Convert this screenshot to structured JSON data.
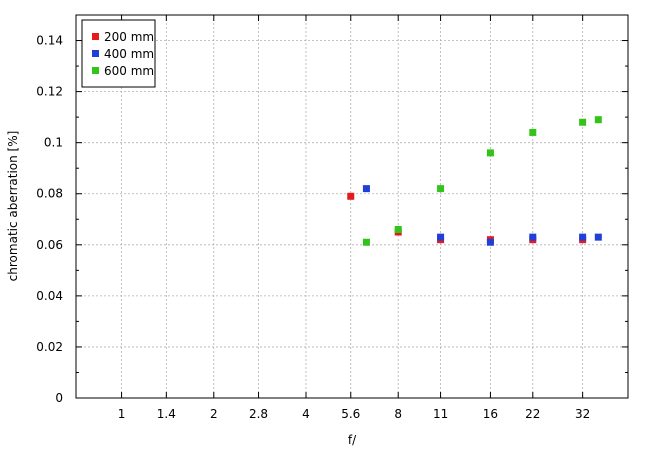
{
  "chart_data": {
    "type": "scatter",
    "title": "",
    "xlabel": "f/",
    "ylabel": "chromatic  aberration  [%]",
    "x_scale": "log2",
    "x_ticks": [
      {
        "value": 1,
        "label": "1"
      },
      {
        "value": 1.4,
        "label": "1.4"
      },
      {
        "value": 2,
        "label": "2"
      },
      {
        "value": 2.8,
        "label": "2.8"
      },
      {
        "value": 4,
        "label": "4"
      },
      {
        "value": 5.6,
        "label": "5.6"
      },
      {
        "value": 8,
        "label": "8"
      },
      {
        "value": 11,
        "label": "11"
      },
      {
        "value": 16,
        "label": "16"
      },
      {
        "value": 22,
        "label": "22"
      },
      {
        "value": 32,
        "label": "32"
      }
    ],
    "xlim": [
      0.71,
      45
    ],
    "ylim": [
      0,
      0.15
    ],
    "y_ticks": [
      {
        "value": 0,
        "label": "0"
      },
      {
        "value": 0.02,
        "label": "0.02"
      },
      {
        "value": 0.04,
        "label": "0.04"
      },
      {
        "value": 0.06,
        "label": "0.06"
      },
      {
        "value": 0.08,
        "label": "0.08"
      },
      {
        "value": 0.1,
        "label": "0.1"
      },
      {
        "value": 0.12,
        "label": "0.12"
      },
      {
        "value": 0.14,
        "label": "0.14"
      }
    ],
    "y_minor_step": 0.01,
    "grid": true,
    "legend_position": "top-left",
    "series": [
      {
        "name": "200 mm",
        "color": "#e41a1c",
        "points": [
          {
            "x": 5.6,
            "y": 0.079
          },
          {
            "x": 8,
            "y": 0.065
          },
          {
            "x": 11,
            "y": 0.062
          },
          {
            "x": 16,
            "y": 0.062
          },
          {
            "x": 22,
            "y": 0.062
          },
          {
            "x": 32,
            "y": 0.062
          }
        ]
      },
      {
        "name": "400 mm",
        "color": "#1f3fd6",
        "points": [
          {
            "x": 6.3,
            "y": 0.082
          },
          {
            "x": 11,
            "y": 0.063
          },
          {
            "x": 16,
            "y": 0.061
          },
          {
            "x": 22,
            "y": 0.063
          },
          {
            "x": 32,
            "y": 0.063
          },
          {
            "x": 36,
            "y": 0.063
          }
        ]
      },
      {
        "name": "600 mm",
        "color": "#33c41a",
        "points": [
          {
            "x": 6.3,
            "y": 0.061
          },
          {
            "x": 8,
            "y": 0.066
          },
          {
            "x": 11,
            "y": 0.082
          },
          {
            "x": 16,
            "y": 0.096
          },
          {
            "x": 22,
            "y": 0.104
          },
          {
            "x": 32,
            "y": 0.108
          },
          {
            "x": 36,
            "y": 0.109
          }
        ]
      }
    ]
  }
}
